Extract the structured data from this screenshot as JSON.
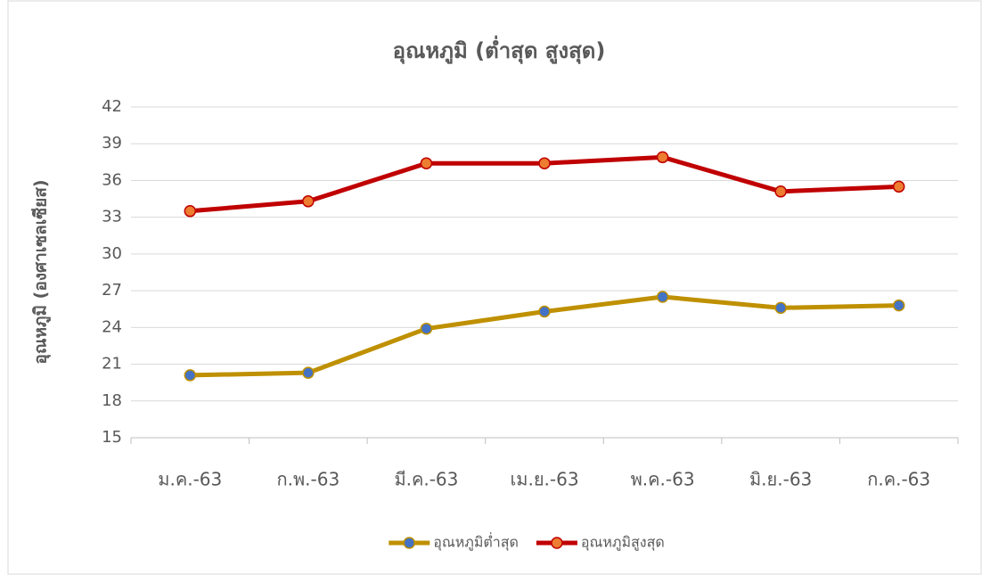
{
  "chart_data": {
    "type": "line",
    "title": "อุณหภูมิ (ต่ำสุด สูงสุด)",
    "y_label": "อุณหภูมิ (องศาเซลเซียส)",
    "categories": [
      "ม.ค.-63",
      "ก.พ.-63",
      "มี.ค.-63",
      "เม.ย.-63",
      "พ.ค.-63",
      "มิ.ย.-63",
      "ก.ค.-63"
    ],
    "series": [
      {
        "name": "อุณหภูมิต่ำสุด",
        "color": "#bf9000",
        "marker_color": "#4472c4",
        "values": [
          20.1,
          20.3,
          23.9,
          25.3,
          26.5,
          25.6,
          25.8
        ]
      },
      {
        "name": "อุณหภูมิสูงสุด",
        "color": "#c00000",
        "marker_color": "#ed7d31",
        "values": [
          33.5,
          34.3,
          37.4,
          37.4,
          37.9,
          35.1,
          35.5
        ]
      }
    ],
    "ylim": [
      15,
      42
    ],
    "yticks": [
      15,
      18,
      21,
      24,
      27,
      30,
      33,
      36,
      39,
      42
    ],
    "grid": true,
    "legend": "bottom"
  }
}
